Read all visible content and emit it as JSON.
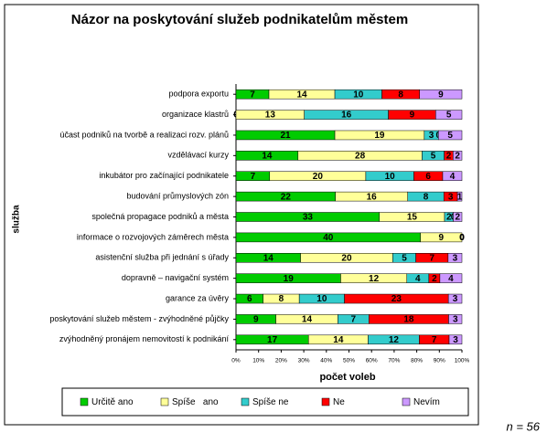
{
  "chart_data": {
    "type": "stacked_percent_barh",
    "title": "Názor na poskytování služeb podnikatelům městem",
    "xlabel": "počet voleb",
    "ylabel": "služba",
    "annotation": "n = 56",
    "categories": [
      "podpora exportu",
      "organizace klastrů",
      "účast podniků na tvorbě a realizaci rozv. plánů",
      "vzdělávací kurzy",
      "inkubátor pro začínající podnikatele",
      "budování průmyslových zón",
      "společná propagace podniků a města",
      "informace o rozvojových záměrech města",
      "asistenční služba při jednání s úřady",
      "dopravně – navigační systém",
      "garance za úvěry",
      "poskytování služeb městem - zvýhodněné půjčky",
      "zvýhodněný pronájem nemovitostí k podnikání"
    ],
    "series": [
      {
        "name": "Určitě ano",
        "color": "#00cc00",
        "values": [
          7,
          0,
          21,
          14,
          7,
          22,
          33,
          40,
          14,
          19,
          6,
          9,
          17
        ]
      },
      {
        "name": "Spíše   ano",
        "color": "#ffff99",
        "values": [
          14,
          13,
          19,
          28,
          20,
          16,
          15,
          9,
          20,
          12,
          8,
          14,
          14
        ]
      },
      {
        "name": "Spíše ne",
        "color": "#33cccc",
        "values": [
          10,
          16,
          3,
          5,
          10,
          8,
          2,
          0,
          5,
          4,
          10,
          7,
          12
        ]
      },
      {
        "name": "Ne",
        "color": "#ff0000",
        "values": [
          8,
          9,
          0,
          2,
          6,
          3,
          0,
          0,
          7,
          2,
          23,
          18,
          7
        ]
      },
      {
        "name": "Nevím",
        "color": "#cc99ff",
        "values": [
          9,
          5,
          5,
          2,
          4,
          1,
          2,
          0,
          3,
          4,
          3,
          3,
          3
        ]
      }
    ],
    "xlim": [
      0,
      100
    ],
    "xticks": [
      {
        "value": 0,
        "label": "0%"
      },
      {
        "value": 10,
        "label": "10%"
      },
      {
        "value": 20,
        "label": "20%"
      },
      {
        "value": 30,
        "label": "30%"
      },
      {
        "value": 40,
        "label": "40%"
      },
      {
        "value": 50,
        "label": "50%"
      },
      {
        "value": 60,
        "label": "60%"
      },
      {
        "value": 70,
        "label": "70%"
      },
      {
        "value": 80,
        "label": "80%"
      },
      {
        "value": 90,
        "label": "90%"
      },
      {
        "value": 100,
        "label": "100%"
      }
    ],
    "legend": "bottom"
  }
}
